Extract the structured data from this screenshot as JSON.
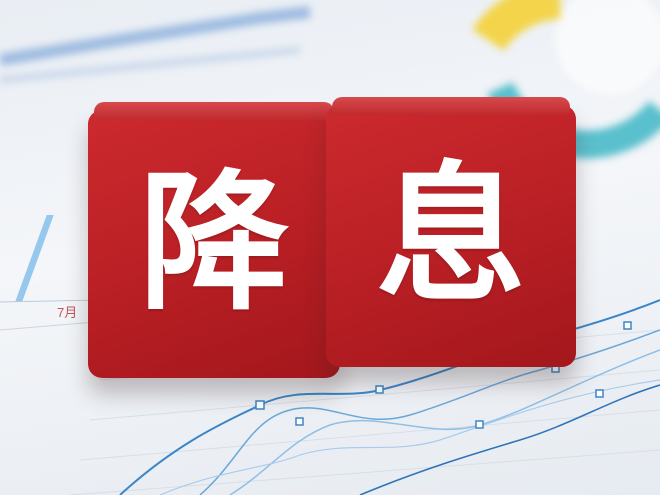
{
  "blocks": [
    {
      "char": "降"
    },
    {
      "char": "息"
    }
  ],
  "background_label": "7月",
  "colors": {
    "block_red": "#b81f24",
    "glyph_white": "#ffffff",
    "chart_blue": "#3b86c8",
    "donut_yellow": "#f3d44a",
    "donut_teal": "#3fb6c5"
  }
}
